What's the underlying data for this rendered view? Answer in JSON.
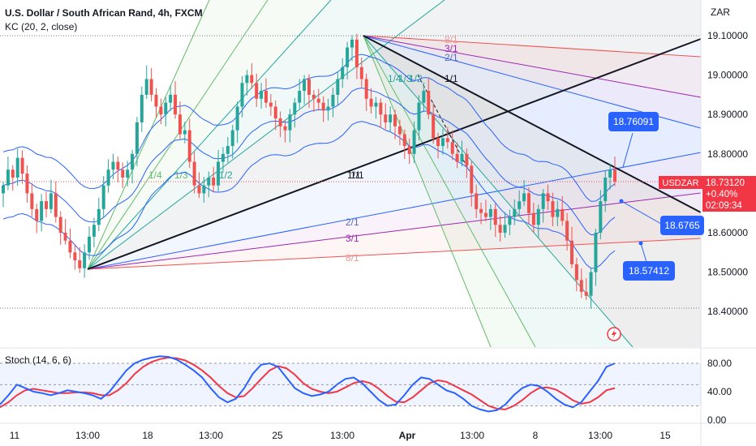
{
  "header": {
    "title": "U.S. Dollar / South African Rand, 4h, FXCM",
    "indicator": "KC (20, 2, close)",
    "currency_button": "ZAR"
  },
  "stoch_label": "Stoch (14, 6, 6)",
  "price_badge": {
    "symbol": "USDZAR",
    "price": "18.73120",
    "change": "+0.40%",
    "countdown": "02:09:34"
  },
  "callouts": [
    {
      "text": "18.76091",
      "value": 18.76091
    },
    {
      "text": "18.6765",
      "value": 18.6765
    },
    {
      "text": "18.57412",
      "value": 18.57412
    }
  ],
  "fan_labels": [
    {
      "text": "8/1",
      "color": "#ef9a9a"
    },
    {
      "text": "3/1",
      "color": "#9c27b0"
    },
    {
      "text": "2/1",
      "color": "#5c6bc0"
    },
    {
      "text": "1/1",
      "color": "#131722"
    },
    {
      "text": "1/2",
      "color": "#26a69a"
    },
    {
      "text": "1/3",
      "color": "#26a69a"
    },
    {
      "text": "1/4",
      "color": "#26a69a"
    },
    {
      "text": "1/1",
      "color": "#131722"
    },
    {
      "text": "1/2",
      "color": "#26a69a"
    },
    {
      "text": "1/3",
      "color": "#66bb6a"
    },
    {
      "text": "1/4",
      "color": "#66bb6a"
    },
    {
      "text": "1/1",
      "color": "#131722"
    },
    {
      "text": "2/1",
      "color": "#5c6bc0"
    },
    {
      "text": "3/1",
      "color": "#9c27b0"
    },
    {
      "text": "8/1",
      "color": "#ef9a9a"
    }
  ],
  "chart_data": {
    "type": "candlestick",
    "symbol": "USDZAR",
    "timeframe": "4h",
    "x_tick_labels": [
      "11",
      "13:00",
      "18",
      "13:00",
      "25",
      "13:00",
      "Apr",
      "13:00",
      "8",
      "13:00",
      "15"
    ],
    "y_ticks": [
      "19.10000",
      "19.00000",
      "18.90000",
      "18.80000",
      "18.70000",
      "18.60000",
      "18.50000",
      "18.40000"
    ],
    "ylim": [
      18.36,
      19.15
    ],
    "stoch_y_ticks": [
      "80.00",
      "40.00",
      "0.00"
    ],
    "stoch_ylim": [
      -2,
      98
    ],
    "last_price": 18.7312,
    "colors": {
      "up": "#26a69a",
      "down": "#ef5350",
      "keltner": "#2962ff",
      "stoch_k": "#2962ff",
      "stoch_d": "#f23645"
    },
    "ohlc_close_approx": [
      18.72,
      18.76,
      18.74,
      18.79,
      18.75,
      18.7,
      18.66,
      18.63,
      18.68,
      18.66,
      18.7,
      18.64,
      18.6,
      18.58,
      18.55,
      18.53,
      18.51,
      18.55,
      18.59,
      18.62,
      18.66,
      18.72,
      18.76,
      18.78,
      18.76,
      18.74,
      18.76,
      18.8,
      18.88,
      18.95,
      18.99,
      18.95,
      18.92,
      18.9,
      18.93,
      18.95,
      18.9,
      18.85,
      18.86,
      18.78,
      18.72,
      18.7,
      18.72,
      18.74,
      18.72,
      18.78,
      18.8,
      18.82,
      18.86,
      18.92,
      18.98,
      19.0,
      18.98,
      18.94,
      18.96,
      18.93,
      18.92,
      18.89,
      18.87,
      18.86,
      18.9,
      18.93,
      18.96,
      18.99,
      18.95,
      18.94,
      18.93,
      18.91,
      18.92,
      18.95,
      18.99,
      19.02,
      19.07,
      19.09,
      19.02,
      18.99,
      18.94,
      18.92,
      18.93,
      18.9,
      18.88,
      18.9,
      18.87,
      18.85,
      18.82,
      18.8,
      18.86,
      18.93,
      18.96,
      18.9,
      18.84,
      18.82,
      18.84,
      18.83,
      18.8,
      18.78,
      18.8,
      18.77,
      18.7,
      18.66,
      18.65,
      18.64,
      18.66,
      18.62,
      18.6,
      18.62,
      18.64,
      18.66,
      18.68,
      18.7,
      18.65,
      18.62,
      18.66,
      18.7,
      18.68,
      18.64,
      18.66,
      18.63,
      18.58,
      18.52,
      18.48,
      18.45,
      18.44,
      18.5,
      18.6,
      18.68,
      18.74,
      18.76,
      18.73
    ],
    "stoch_k_approx": [
      22,
      35,
      50,
      45,
      40,
      38,
      35,
      38,
      42,
      40,
      38,
      35,
      30,
      40,
      55,
      70,
      80,
      85,
      88,
      90,
      89,
      85,
      78,
      70,
      60,
      45,
      32,
      25,
      30,
      45,
      65,
      78,
      80,
      75,
      60,
      45,
      38,
      34,
      36,
      40,
      50,
      58,
      60,
      52,
      40,
      28,
      20,
      22,
      35,
      50,
      60,
      58,
      50,
      42,
      38,
      30,
      20,
      15,
      12,
      14,
      22,
      35,
      45,
      50,
      48,
      40,
      30,
      22,
      18,
      25,
      40,
      55,
      75,
      80
    ],
    "stoch_d_approx": [
      18,
      25,
      35,
      42,
      44,
      42,
      40,
      38,
      38,
      39,
      39,
      38,
      35,
      35,
      42,
      52,
      65,
      75,
      82,
      86,
      88,
      87,
      84,
      78,
      70,
      60,
      48,
      38,
      32,
      34,
      45,
      58,
      70,
      76,
      73,
      64,
      52,
      44,
      40,
      38,
      40,
      46,
      52,
      55,
      52,
      44,
      34,
      26,
      25,
      32,
      42,
      52,
      56,
      54,
      48,
      42,
      36,
      28,
      20,
      16,
      15,
      20,
      28,
      38,
      45,
      46,
      43,
      36,
      28,
      23,
      25,
      32,
      42,
      45
    ]
  }
}
